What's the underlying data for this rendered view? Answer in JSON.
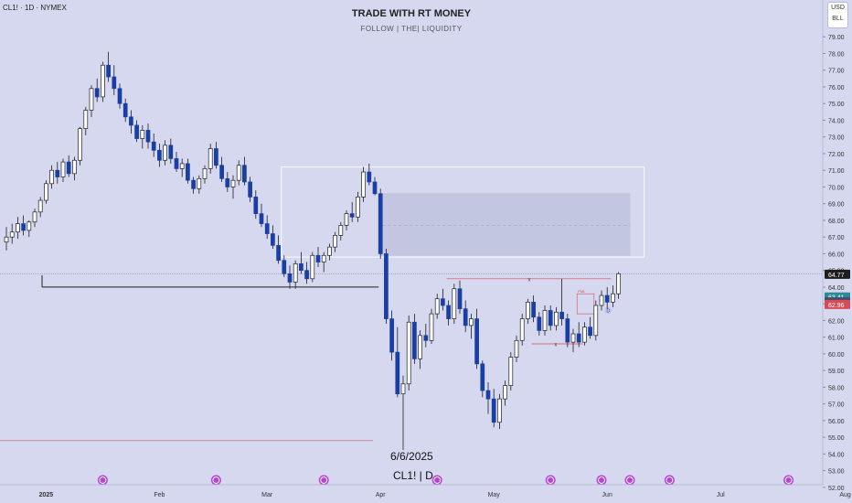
{
  "header": {
    "symbol_line": "CL1! · 1D · NYMEX"
  },
  "watermark": {
    "title": "TRADE WITH RT MONEY",
    "subtitle": "FOLLOW  |  THE|  LIQUIDITY"
  },
  "currency_badge": {
    "line1": "USD",
    "line2": "BLL"
  },
  "annotations": {
    "date_label": "6/6/2025",
    "symbol_label": "CL1!  |  D",
    "marker_d": "D",
    "marker_x": "x",
    "box_label": "PML"
  },
  "price_labels": [
    {
      "text": "64.77",
      "value": 64.77,
      "color": "#1e1e1e"
    },
    {
      "text": "63.41",
      "value": 63.41,
      "color": "#2b8a96"
    },
    {
      "text": "63.11",
      "value": 63.11,
      "color": "#454a6a"
    },
    {
      "text": "62.96",
      "value": 62.96,
      "color": "#d64b55"
    }
  ],
  "chart_data": {
    "type": "candlestick",
    "ylim": [
      51.5,
      80.0
    ],
    "y_ticks": [
      "52.00",
      "53.00",
      "54.00",
      "55.00",
      "56.00",
      "57.00",
      "58.00",
      "59.00",
      "60.00",
      "61.00",
      "62.00",
      "63.00",
      "64.00",
      "65.00",
      "66.00",
      "67.00",
      "68.00",
      "69.00",
      "70.00",
      "71.00",
      "72.00",
      "73.00",
      "74.00",
      "75.00",
      "76.00",
      "77.00",
      "78.00",
      "79.00"
    ],
    "x_ticks": [
      {
        "label": "2025",
        "bar": 7,
        "bold": true
      },
      {
        "label": "Feb",
        "bar": 27
      },
      {
        "label": "Mar",
        "bar": 46
      },
      {
        "label": "Apr",
        "bar": 66
      },
      {
        "label": "May",
        "bar": 86
      },
      {
        "label": "Jun",
        "bar": 106
      },
      {
        "label": "Jul",
        "bar": 126
      },
      {
        "label": "Aug",
        "bar": 148
      }
    ],
    "event_markers": [
      17,
      37,
      56,
      76,
      96,
      105,
      110,
      117,
      138
    ],
    "candles": [
      [
        66.7,
        67.6,
        66.2,
        67.0
      ],
      [
        67.0,
        67.8,
        66.6,
        67.3
      ],
      [
        67.3,
        68.2,
        66.9,
        67.8
      ],
      [
        67.8,
        68.3,
        67.1,
        67.4
      ],
      [
        67.4,
        68.0,
        67.0,
        67.9
      ],
      [
        67.9,
        68.7,
        67.6,
        68.5
      ],
      [
        68.5,
        69.4,
        68.2,
        69.2
      ],
      [
        69.2,
        70.4,
        69.0,
        70.2
      ],
      [
        70.2,
        71.3,
        69.9,
        71.0
      ],
      [
        71.0,
        71.5,
        70.2,
        70.6
      ],
      [
        70.6,
        71.7,
        70.3,
        71.5
      ],
      [
        71.5,
        71.9,
        70.6,
        70.8
      ],
      [
        70.8,
        71.8,
        70.4,
        71.6
      ],
      [
        71.6,
        73.6,
        71.3,
        73.5
      ],
      [
        73.5,
        74.8,
        73.1,
        74.6
      ],
      [
        74.6,
        76.1,
        74.2,
        75.9
      ],
      [
        75.9,
        76.5,
        75.1,
        75.4
      ],
      [
        75.4,
        77.5,
        75.1,
        77.3
      ],
      [
        77.3,
        78.1,
        76.3,
        76.6
      ],
      [
        76.6,
        77.3,
        75.5,
        75.9
      ],
      [
        75.9,
        76.2,
        74.7,
        75.0
      ],
      [
        75.0,
        75.3,
        73.9,
        74.2
      ],
      [
        74.2,
        74.6,
        73.2,
        73.7
      ],
      [
        73.7,
        74.0,
        72.7,
        72.9
      ],
      [
        72.9,
        73.7,
        72.3,
        73.4
      ],
      [
        73.4,
        73.8,
        72.3,
        72.7
      ],
      [
        72.7,
        73.2,
        71.8,
        72.2
      ],
      [
        72.2,
        72.6,
        71.2,
        71.6
      ],
      [
        71.6,
        72.8,
        71.3,
        72.5
      ],
      [
        72.5,
        72.9,
        71.4,
        71.7
      ],
      [
        71.7,
        72.1,
        70.9,
        71.1
      ],
      [
        71.1,
        71.7,
        70.6,
        71.4
      ],
      [
        71.4,
        71.7,
        70.2,
        70.4
      ],
      [
        70.4,
        70.6,
        69.6,
        69.9
      ],
      [
        69.9,
        70.7,
        69.6,
        70.5
      ],
      [
        70.5,
        71.3,
        70.2,
        71.1
      ],
      [
        71.1,
        72.6,
        70.8,
        72.3
      ],
      [
        72.3,
        72.7,
        71.1,
        71.3
      ],
      [
        71.3,
        71.8,
        70.3,
        70.5
      ],
      [
        70.5,
        70.9,
        69.7,
        70.0
      ],
      [
        70.0,
        70.7,
        69.3,
        70.4
      ],
      [
        70.4,
        71.6,
        70.1,
        71.3
      ],
      [
        71.3,
        71.8,
        70.1,
        70.3
      ],
      [
        70.3,
        70.6,
        69.1,
        69.4
      ],
      [
        69.4,
        69.8,
        68.1,
        68.4
      ],
      [
        68.4,
        69.0,
        67.6,
        67.8
      ],
      [
        67.8,
        68.3,
        66.9,
        67.2
      ],
      [
        67.2,
        67.7,
        66.3,
        66.5
      ],
      [
        66.5,
        67.1,
        65.4,
        65.6
      ],
      [
        65.6,
        65.9,
        64.6,
        64.8
      ],
      [
        64.8,
        65.3,
        63.9,
        64.3
      ],
      [
        64.3,
        65.6,
        63.9,
        65.4
      ],
      [
        65.4,
        66.1,
        64.8,
        65.0
      ],
      [
        65.0,
        65.5,
        64.2,
        64.5
      ],
      [
        64.5,
        66.1,
        64.3,
        65.9
      ],
      [
        65.9,
        66.4,
        65.2,
        65.5
      ],
      [
        65.5,
        66.1,
        64.9,
        65.9
      ],
      [
        65.9,
        66.6,
        65.6,
        66.4
      ],
      [
        66.4,
        67.3,
        66.1,
        67.1
      ],
      [
        67.1,
        67.9,
        66.8,
        67.7
      ],
      [
        67.7,
        68.6,
        67.4,
        68.4
      ],
      [
        68.4,
        69.1,
        67.9,
        68.2
      ],
      [
        68.2,
        69.7,
        67.9,
        69.4
      ],
      [
        69.4,
        71.2,
        69.1,
        70.9
      ],
      [
        70.9,
        71.4,
        70.1,
        70.3
      ],
      [
        70.3,
        70.6,
        69.5,
        69.6
      ],
      [
        69.6,
        69.9,
        65.7,
        66.0
      ],
      [
        66.0,
        66.3,
        61.8,
        62.1
      ],
      [
        62.1,
        62.6,
        59.6,
        60.1
      ],
      [
        60.1,
        61.6,
        57.4,
        57.6
      ],
      [
        57.6,
        58.7,
        55.1,
        58.2
      ],
      [
        58.2,
        62.3,
        57.8,
        61.9
      ],
      [
        61.9,
        62.4,
        59.4,
        59.7
      ],
      [
        59.7,
        61.4,
        59.1,
        61.1
      ],
      [
        61.1,
        61.8,
        60.4,
        60.8
      ],
      [
        60.8,
        62.7,
        60.6,
        62.4
      ],
      [
        62.4,
        63.6,
        62.1,
        63.3
      ],
      [
        63.3,
        63.9,
        62.6,
        62.9
      ],
      [
        62.9,
        63.2,
        61.7,
        62.1
      ],
      [
        62.1,
        64.2,
        61.8,
        63.9
      ],
      [
        63.9,
        64.4,
        62.4,
        62.7
      ],
      [
        62.7,
        63.2,
        61.3,
        61.7
      ],
      [
        61.7,
        62.4,
        60.9,
        62.1
      ],
      [
        62.1,
        62.7,
        59.1,
        59.4
      ],
      [
        59.4,
        59.6,
        57.4,
        57.8
      ],
      [
        57.8,
        58.3,
        56.4,
        57.3
      ],
      [
        57.3,
        57.9,
        55.6,
        55.9
      ],
      [
        55.9,
        57.6,
        55.5,
        57.3
      ],
      [
        57.3,
        58.4,
        56.9,
        58.1
      ],
      [
        58.1,
        60.1,
        57.8,
        59.8
      ],
      [
        59.8,
        61.1,
        59.5,
        60.8
      ],
      [
        60.8,
        62.4,
        60.5,
        62.1
      ],
      [
        62.1,
        63.3,
        61.8,
        63.1
      ],
      [
        63.1,
        63.5,
        61.9,
        62.2
      ],
      [
        62.2,
        62.5,
        61.1,
        61.4
      ],
      [
        61.4,
        62.9,
        61.1,
        62.6
      ],
      [
        62.6,
        62.9,
        61.4,
        61.7
      ],
      [
        61.7,
        62.8,
        61.4,
        62.5
      ],
      [
        62.5,
        64.5,
        61.7,
        62.1
      ],
      [
        62.1,
        62.4,
        60.4,
        60.7
      ],
      [
        60.7,
        61.5,
        60.1,
        61.2
      ],
      [
        61.2,
        61.9,
        60.4,
        60.7
      ],
      [
        60.7,
        61.9,
        60.5,
        61.6
      ],
      [
        61.6,
        62.2,
        60.9,
        61.1
      ],
      [
        61.1,
        63.2,
        60.8,
        62.9
      ],
      [
        62.9,
        63.8,
        62.6,
        63.5
      ],
      [
        63.5,
        64.0,
        62.7,
        63.1
      ],
      [
        63.1,
        64.1,
        62.8,
        63.6
      ],
      [
        63.6,
        64.9,
        63.3,
        64.8
      ]
    ]
  }
}
